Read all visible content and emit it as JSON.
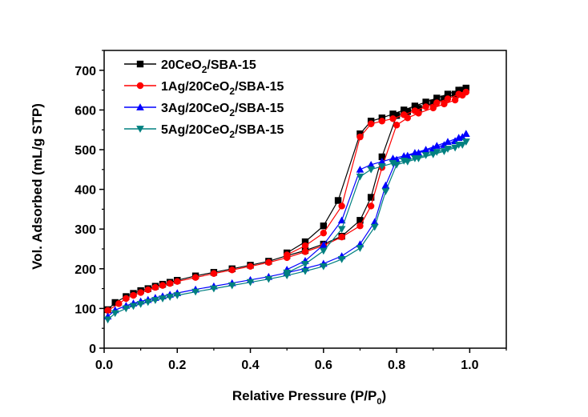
{
  "chart_data": {
    "type": "line",
    "title": "",
    "xlabel": "Relative Pressure (P/P",
    "xlabel_sub": "0",
    "xlabel_close": ")",
    "ylabel": "Vol. Adsorbed (mL/g STP)",
    "xlim": [
      0.0,
      1.1
    ],
    "ylim": [
      0,
      750
    ],
    "xticks": [
      "0.0",
      "0.2",
      "0.4",
      "0.6",
      "0.8",
      "1.0"
    ],
    "yticks": [
      "0",
      "100",
      "200",
      "300",
      "400",
      "500",
      "600",
      "700"
    ],
    "grid": false,
    "legend_position": "top-left",
    "series": [
      {
        "name": "20CeO2/SBA-15",
        "name_parts": [
          "20CeO",
          "2",
          "/SBA-15"
        ],
        "color": "#000000",
        "marker": "square",
        "adsorption": [
          [
            0.01,
            97
          ],
          [
            0.03,
            115
          ],
          [
            0.06,
            130
          ],
          [
            0.08,
            138
          ],
          [
            0.1,
            145
          ],
          [
            0.12,
            150
          ],
          [
            0.14,
            156
          ],
          [
            0.16,
            161
          ],
          [
            0.18,
            166
          ],
          [
            0.2,
            171
          ],
          [
            0.25,
            182
          ],
          [
            0.3,
            191
          ],
          [
            0.35,
            200
          ],
          [
            0.4,
            209
          ],
          [
            0.45,
            219
          ],
          [
            0.5,
            233
          ],
          [
            0.55,
            246
          ],
          [
            0.6,
            262
          ],
          [
            0.65,
            282
          ],
          [
            0.7,
            322
          ],
          [
            0.73,
            380
          ],
          [
            0.76,
            482
          ],
          [
            0.8,
            586
          ],
          [
            0.83,
            596
          ],
          [
            0.86,
            604
          ],
          [
            0.9,
            618
          ],
          [
            0.93,
            628
          ],
          [
            0.96,
            640
          ],
          [
            0.98,
            650
          ],
          [
            0.99,
            655
          ]
        ],
        "desorption": [
          [
            0.99,
            655
          ],
          [
            0.97,
            650
          ],
          [
            0.94,
            640
          ],
          [
            0.91,
            630
          ],
          [
            0.88,
            620
          ],
          [
            0.85,
            610
          ],
          [
            0.82,
            600
          ],
          [
            0.79,
            590
          ],
          [
            0.76,
            580
          ],
          [
            0.73,
            572
          ],
          [
            0.7,
            540
          ],
          [
            0.64,
            372
          ],
          [
            0.6,
            308
          ],
          [
            0.55,
            268
          ],
          [
            0.5,
            240
          ]
        ]
      },
      {
        "name": "1Ag/20CeO2/SBA-15",
        "name_parts": [
          "1Ag/20CeO",
          "2",
          "/SBA-15"
        ],
        "color": "#ff0000",
        "marker": "circle",
        "adsorption": [
          [
            0.01,
            95
          ],
          [
            0.04,
            112
          ],
          [
            0.06,
            125
          ],
          [
            0.08,
            133
          ],
          [
            0.1,
            140
          ],
          [
            0.12,
            147
          ],
          [
            0.14,
            153
          ],
          [
            0.16,
            158
          ],
          [
            0.18,
            163
          ],
          [
            0.2,
            168
          ],
          [
            0.25,
            178
          ],
          [
            0.3,
            188
          ],
          [
            0.35,
            197
          ],
          [
            0.4,
            206
          ],
          [
            0.45,
            216
          ],
          [
            0.5,
            228
          ],
          [
            0.55,
            243
          ],
          [
            0.6,
            258
          ],
          [
            0.65,
            280
          ],
          [
            0.7,
            308
          ],
          [
            0.73,
            358
          ],
          [
            0.76,
            455
          ],
          [
            0.8,
            562
          ],
          [
            0.83,
            580
          ],
          [
            0.86,
            592
          ],
          [
            0.9,
            605
          ],
          [
            0.93,
            615
          ],
          [
            0.96,
            625
          ],
          [
            0.98,
            637
          ],
          [
            0.99,
            645
          ]
        ],
        "desorption": [
          [
            0.99,
            645
          ],
          [
            0.97,
            640
          ],
          [
            0.94,
            628
          ],
          [
            0.91,
            618
          ],
          [
            0.88,
            608
          ],
          [
            0.85,
            598
          ],
          [
            0.82,
            588
          ],
          [
            0.79,
            578
          ],
          [
            0.76,
            572
          ],
          [
            0.73,
            565
          ],
          [
            0.7,
            532
          ],
          [
            0.65,
            358
          ],
          [
            0.6,
            290
          ],
          [
            0.55,
            258
          ],
          [
            0.5,
            235
          ]
        ]
      },
      {
        "name": "3Ag/20CeO2/SBA-15",
        "name_parts": [
          "3Ag/20CeO",
          "2",
          "/SBA-15"
        ],
        "color": "#0000ff",
        "marker": "triangle-up",
        "adsorption": [
          [
            0.01,
            80
          ],
          [
            0.03,
            96
          ],
          [
            0.06,
            107
          ],
          [
            0.08,
            113
          ],
          [
            0.1,
            118
          ],
          [
            0.12,
            122
          ],
          [
            0.14,
            127
          ],
          [
            0.16,
            131
          ],
          [
            0.18,
            135
          ],
          [
            0.2,
            139
          ],
          [
            0.25,
            148
          ],
          [
            0.3,
            156
          ],
          [
            0.35,
            164
          ],
          [
            0.4,
            172
          ],
          [
            0.45,
            180
          ],
          [
            0.5,
            190
          ],
          [
            0.55,
            201
          ],
          [
            0.6,
            213
          ],
          [
            0.65,
            232
          ],
          [
            0.7,
            262
          ],
          [
            0.74,
            318
          ],
          [
            0.77,
            410
          ],
          [
            0.8,
            475
          ],
          [
            0.83,
            485
          ],
          [
            0.86,
            492
          ],
          [
            0.9,
            503
          ],
          [
            0.93,
            512
          ],
          [
            0.96,
            522
          ],
          [
            0.98,
            532
          ],
          [
            0.99,
            540
          ]
        ],
        "desorption": [
          [
            0.99,
            540
          ],
          [
            0.97,
            530
          ],
          [
            0.94,
            520
          ],
          [
            0.91,
            510
          ],
          [
            0.88,
            500
          ],
          [
            0.85,
            492
          ],
          [
            0.82,
            484
          ],
          [
            0.79,
            478
          ],
          [
            0.76,
            470
          ],
          [
            0.73,
            462
          ],
          [
            0.7,
            450
          ],
          [
            0.65,
            322
          ],
          [
            0.6,
            260
          ],
          [
            0.55,
            220
          ],
          [
            0.5,
            198
          ]
        ]
      },
      {
        "name": "5Ag/20CeO2/SBA-15",
        "name_parts": [
          "5Ag/20CeO",
          "2",
          "/SBA-15"
        ],
        "color": "#008080",
        "marker": "triangle-down",
        "adsorption": [
          [
            0.01,
            72
          ],
          [
            0.03,
            88
          ],
          [
            0.06,
            100
          ],
          [
            0.08,
            106
          ],
          [
            0.1,
            111
          ],
          [
            0.12,
            116
          ],
          [
            0.14,
            121
          ],
          [
            0.16,
            125
          ],
          [
            0.18,
            129
          ],
          [
            0.2,
            133
          ],
          [
            0.25,
            142
          ],
          [
            0.3,
            150
          ],
          [
            0.35,
            158
          ],
          [
            0.4,
            166
          ],
          [
            0.45,
            174
          ],
          [
            0.5,
            183
          ],
          [
            0.55,
            194
          ],
          [
            0.6,
            206
          ],
          [
            0.65,
            224
          ],
          [
            0.7,
            252
          ],
          [
            0.74,
            305
          ],
          [
            0.77,
            395
          ],
          [
            0.8,
            462
          ],
          [
            0.83,
            470
          ],
          [
            0.86,
            478
          ],
          [
            0.9,
            488
          ],
          [
            0.93,
            496
          ],
          [
            0.96,
            505
          ],
          [
            0.98,
            512
          ],
          [
            0.99,
            520
          ]
        ],
        "desorption": [
          [
            0.99,
            520
          ],
          [
            0.97,
            512
          ],
          [
            0.94,
            502
          ],
          [
            0.91,
            494
          ],
          [
            0.88,
            486
          ],
          [
            0.85,
            478
          ],
          [
            0.82,
            472
          ],
          [
            0.79,
            466
          ],
          [
            0.76,
            458
          ],
          [
            0.73,
            450
          ],
          [
            0.7,
            432
          ],
          [
            0.65,
            300
          ],
          [
            0.6,
            245
          ],
          [
            0.55,
            212
          ],
          [
            0.5,
            190
          ]
        ]
      }
    ]
  }
}
